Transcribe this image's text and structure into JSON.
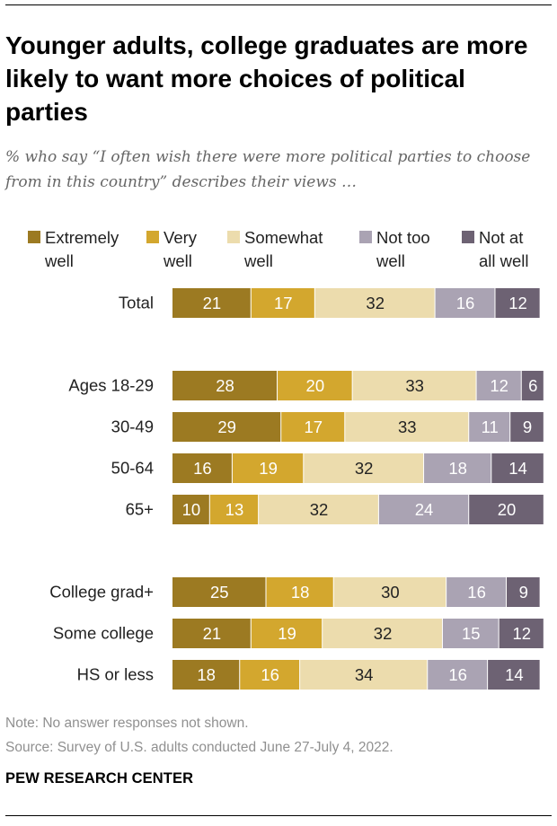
{
  "title": "Younger adults, college graduates are more likely to want more choices of political parties",
  "subtitle": "% who say “I often wish there were more political parties to choose from in this country” describes their views …",
  "note": "Note: No answer responses not shown.",
  "source": "Source: Survey of U.S. adults conducted June 27-July 4, 2022.",
  "brand": "PEW RESEARCH CENTER",
  "colors": {
    "extremely_well": "#9c7a22",
    "very_well": "#d3a72e",
    "somewhat_well": "#ecdcad",
    "not_too_well": "#aaa3b3",
    "not_at_all_well": "#6d6273",
    "label_light": "#ffffff",
    "label_dark": "#222222"
  },
  "chart_data": {
    "type": "bar",
    "orientation": "horizontal",
    "stacked": true,
    "legend_placement": "top",
    "categories": [
      "Total",
      "Ages 18-29",
      "30-49",
      "50-64",
      "65+",
      "College grad+",
      "Some college",
      "HS or less"
    ],
    "series": [
      {
        "name": "Extremely well",
        "legend_lines": [
          "Extremely",
          "well"
        ],
        "color_key": "extremely_well",
        "values": [
          21,
          28,
          29,
          16,
          10,
          25,
          21,
          18
        ]
      },
      {
        "name": "Very well",
        "legend_lines": [
          "Very",
          "well"
        ],
        "color_key": "very_well",
        "values": [
          17,
          20,
          17,
          19,
          13,
          18,
          19,
          16
        ]
      },
      {
        "name": "Somewhat well",
        "legend_lines": [
          "Somewhat",
          "well"
        ],
        "color_key": "somewhat_well",
        "values": [
          32,
          33,
          33,
          32,
          32,
          30,
          32,
          34
        ]
      },
      {
        "name": "Not too well",
        "legend_lines": [
          "Not too",
          "well"
        ],
        "color_key": "not_too_well",
        "values": [
          16,
          12,
          11,
          18,
          24,
          16,
          15,
          16
        ]
      },
      {
        "name": "Not at all well",
        "legend_lines": [
          "Not at",
          "all well"
        ],
        "color_key": "not_at_all_well",
        "values": [
          12,
          6,
          9,
          14,
          20,
          9,
          12,
          14
        ]
      }
    ]
  }
}
